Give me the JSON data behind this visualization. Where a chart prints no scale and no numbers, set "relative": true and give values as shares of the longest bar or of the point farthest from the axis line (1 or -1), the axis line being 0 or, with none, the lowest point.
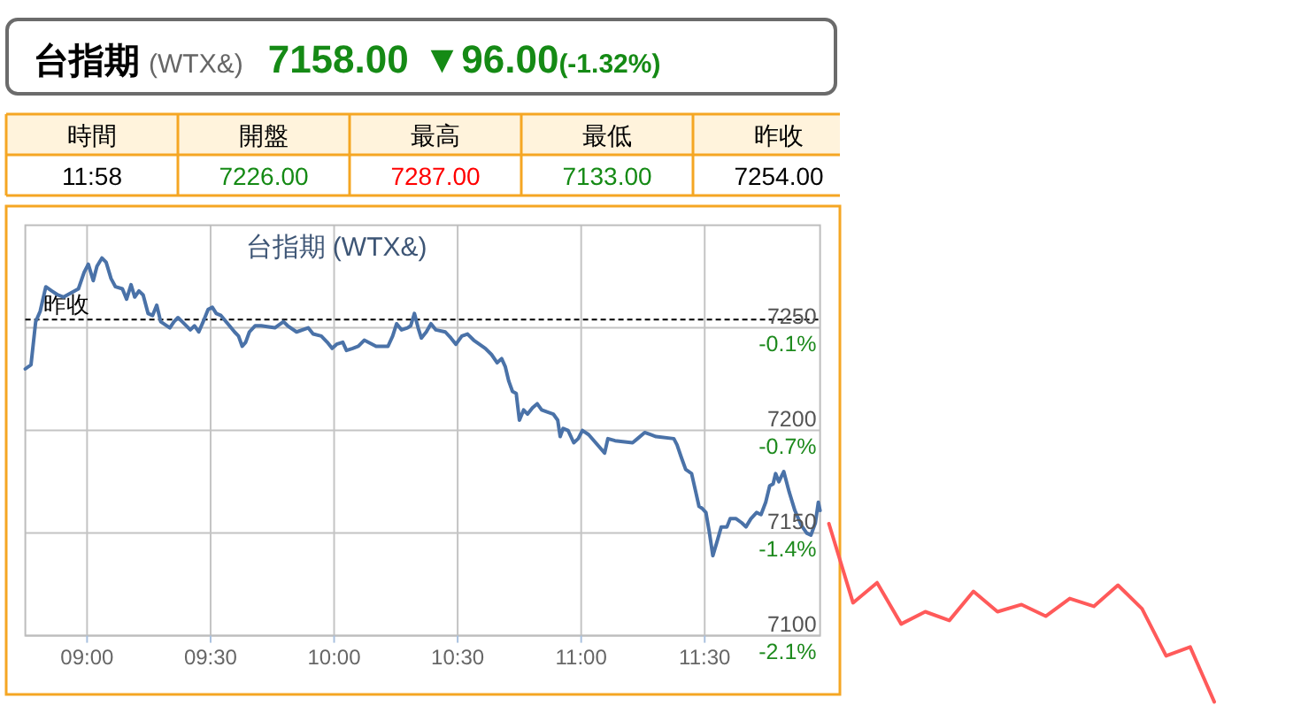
{
  "chart_data": [
    {
      "type": "other",
      "title": "台指期",
      "subtitle": "(WTX&)",
      "annotations": [
        "7158.00",
        "▼96.00",
        "(-1.32%)"
      ],
      "color": "#158a15"
    },
    {
      "type": "other",
      "categories": [
        "時間",
        "開盤",
        "最高",
        "最低",
        "昨收"
      ],
      "annotations": [
        "11:58",
        "7226.00",
        "7287.00",
        "7133.00",
        "7254.00"
      ]
    },
    {
      "type": "line",
      "title": "台指期 (WTX&)",
      "x": [
        8.75,
        8.773,
        8.792,
        8.81,
        8.833,
        8.857,
        8.882,
        8.905,
        8.965,
        8.988,
        9.005,
        9.025,
        9.04,
        9.06,
        9.077,
        9.097,
        9.115,
        9.143,
        9.16,
        9.178,
        9.193,
        9.21,
        9.227,
        9.247,
        9.265,
        9.282,
        9.298,
        9.335,
        9.352,
        9.368,
        9.385,
        9.418,
        9.435,
        9.452,
        9.47,
        9.49,
        9.507,
        9.523,
        9.542,
        9.597,
        9.613,
        9.628,
        9.642,
        9.657,
        9.68,
        9.705,
        9.76,
        9.795,
        9.812,
        9.848,
        9.895,
        9.915,
        9.948,
        9.972,
        9.992,
        10.01,
        10.035,
        10.05,
        10.075,
        10.098,
        10.122,
        10.17,
        10.218,
        10.237,
        10.253,
        10.273,
        10.297,
        10.31,
        10.325,
        10.34,
        10.353,
        10.373,
        10.392,
        10.412,
        10.45,
        10.473,
        10.493,
        10.517,
        10.54,
        10.565,
        10.588,
        10.612,
        10.637,
        10.66,
        10.678,
        10.693,
        10.707,
        10.722,
        10.737,
        10.75,
        10.767,
        10.783,
        10.803,
        10.822,
        10.84,
        10.862,
        10.887,
        10.905,
        10.915,
        10.927,
        10.947,
        10.97,
        10.988,
        11.005,
        11.03,
        11.095,
        11.108,
        11.137,
        11.208,
        11.228,
        11.257,
        11.28,
        11.303,
        11.375,
        11.388,
        11.405,
        11.423,
        11.447,
        11.462,
        11.477,
        11.49,
        11.505,
        11.518,
        11.533,
        11.548,
        11.567,
        11.59,
        11.603,
        11.627,
        11.65,
        11.667,
        11.687,
        11.71,
        11.728,
        11.747,
        11.763,
        11.777,
        11.787,
        11.8,
        11.82,
        11.842,
        11.865,
        11.89,
        11.913,
        11.93,
        11.948,
        11.96,
        11.967
      ],
      "series": [
        {
          "color": "#4a72a8",
          "values": [
            7230,
            7232,
            7253,
            7258,
            7270,
            7268,
            7266,
            7265,
            7269,
            7277,
            7281,
            7273,
            7280,
            7284,
            7282,
            7274,
            7270,
            7269,
            7264,
            7271,
            7265,
            7268,
            7266,
            7257,
            7256,
            7261,
            7253,
            7250,
            7253,
            7255,
            7253,
            7249,
            7251,
            7248,
            7253,
            7259,
            7260,
            7257,
            7256,
            7248,
            7246,
            7241,
            7243,
            7248,
            7251,
            7251,
            7250,
            7253,
            7251,
            7248,
            7250,
            7247,
            7246,
            7243,
            7240,
            7242,
            7243,
            7239,
            7240,
            7241,
            7244,
            7241,
            7241,
            7246,
            7252,
            7249,
            7250,
            7251,
            7257,
            7250,
            7245,
            7248,
            7252,
            7249,
            7248,
            7245,
            7242,
            7246,
            7247,
            7244,
            7242,
            7240,
            7237,
            7233,
            7235,
            7231,
            7224,
            7219,
            7218,
            7205,
            7210,
            7208,
            7211,
            7213,
            7210,
            7209,
            7208,
            7205,
            7197,
            7201,
            7200,
            7194,
            7196,
            7200,
            7198,
            7189,
            7196,
            7195,
            7194,
            7196,
            7199,
            7198,
            7197,
            7196,
            7193,
            7187,
            7181,
            7179,
            7171,
            7163,
            7162,
            7160,
            7151,
            7139,
            7145,
            7153,
            7153,
            7157,
            7157,
            7155,
            7153,
            7157,
            7160,
            7159,
            7165,
            7173,
            7174,
            7179,
            7175,
            7180,
            7170,
            7161,
            7154,
            7150,
            7149,
            7155,
            7165,
            7161
          ]
        }
      ],
      "xlim": [
        8.75,
        11.967
      ],
      "xticks": [
        {
          "value": 9,
          "label": "09:00"
        },
        {
          "value": 9.5,
          "label": "09:30"
        },
        {
          "value": 10,
          "label": "10:00"
        },
        {
          "value": 10.5,
          "label": "10:30"
        },
        {
          "value": 11,
          "label": "11:00"
        },
        {
          "value": 11.5,
          "label": "11:30"
        }
      ],
      "ylim": [
        7100,
        7300
      ],
      "yticks": [
        7100,
        7150,
        7200,
        7250
      ],
      "y2lim": [
        -2.123,
        0.634
      ],
      "y2ticks": [
        {
          "value": -2.123,
          "label": "-2.1%"
        },
        {
          "value": -1.434,
          "label": "-1.4%"
        },
        {
          "value": -0.744,
          "label": "-0.7%"
        },
        {
          "value": -0.055,
          "label": "-0.1%"
        }
      ],
      "ref_lines": [
        {
          "axis": "y",
          "value": 7254,
          "label": "昨收",
          "line_style": "dashed",
          "color": "#000000"
        }
      ],
      "grid": true
    },
    {
      "type": "line",
      "relative": true,
      "categories": [
        null,
        null,
        null,
        null,
        null,
        null,
        null,
        null,
        null,
        null,
        null,
        null,
        null,
        null,
        null,
        null,
        null
      ],
      "series": [
        {
          "color": "#ff5a5a",
          "values": [
            1,
            0.556,
            0.669,
            0.437,
            0.506,
            0.457,
            0.62,
            0.506,
            0.546,
            0.481,
            0.58,
            0.536,
            0.655,
            0.523,
            0.258,
            0.308,
            0
          ]
        }
      ]
    }
  ]
}
